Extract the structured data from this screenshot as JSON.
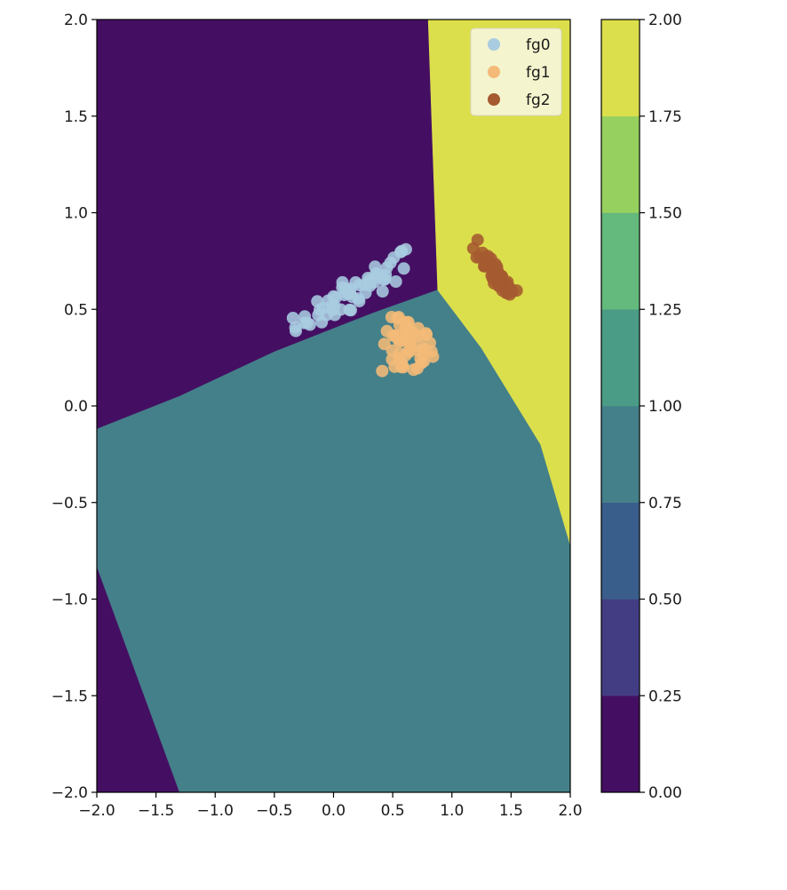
{
  "chart_data": {
    "type": "contourf+scatter",
    "xlim": [
      -2.0,
      2.0
    ],
    "ylim": [
      -2.0,
      2.0
    ],
    "x_ticks": [
      "−2.0",
      "−1.5",
      "−1.0",
      "−0.5",
      "0.0",
      "0.5",
      "1.0",
      "1.5",
      "2.0"
    ],
    "x_tick_values": [
      -2.0,
      -1.5,
      -1.0,
      -0.5,
      0.0,
      0.5,
      1.0,
      1.5,
      2.0
    ],
    "y_ticks": [
      "2.0",
      "1.5",
      "1.0",
      "0.5",
      "0.0",
      "−0.5",
      "−1.0",
      "−1.5",
      "−2.0"
    ],
    "y_tick_values": [
      2.0,
      1.5,
      1.0,
      0.5,
      0.0,
      -0.5,
      -1.0,
      -1.5,
      -2.0
    ],
    "regions": [
      {
        "class_value": 0,
        "color": "#440f62",
        "polygon": [
          [
            -2.0,
            2.0
          ],
          [
            0.8,
            2.0
          ],
          [
            0.88,
            0.6
          ],
          [
            0.33,
            0.48
          ],
          [
            -0.5,
            0.28
          ],
          [
            -1.3,
            0.05
          ],
          [
            -2.0,
            -0.12
          ]
        ]
      },
      {
        "class_value": 0,
        "color": "#440f62",
        "polygon": [
          [
            -2.0,
            -0.83
          ],
          [
            -1.3,
            -2.0
          ],
          [
            -2.0,
            -2.0
          ]
        ]
      },
      {
        "class_value": 1,
        "color": "#44808a",
        "polygon": [
          [
            -2.0,
            -0.12
          ],
          [
            -1.3,
            0.05
          ],
          [
            -0.5,
            0.28
          ],
          [
            0.33,
            0.48
          ],
          [
            0.88,
            0.6
          ],
          [
            1.25,
            0.3
          ],
          [
            1.75,
            -0.2
          ],
          [
            2.0,
            -0.72
          ],
          [
            2.0,
            -2.0
          ],
          [
            -1.3,
            -2.0
          ],
          [
            -2.0,
            -0.83
          ]
        ]
      },
      {
        "class_value": 2,
        "color": "#dcdf4c",
        "polygon": [
          [
            0.8,
            2.0
          ],
          [
            2.0,
            2.0
          ],
          [
            2.0,
            -0.72
          ],
          [
            1.75,
            -0.2
          ],
          [
            1.25,
            0.3
          ],
          [
            0.88,
            0.6
          ]
        ]
      }
    ],
    "series": [
      {
        "name": "fg0",
        "color": "#a9cce0",
        "center": [
          0.2,
          0.6
        ],
        "spread": [
          0.28,
          0.04
        ],
        "tilt": 0.35,
        "n": 60
      },
      {
        "name": "fg1",
        "color": "#f3ba78",
        "center": [
          0.62,
          0.3
        ],
        "spread": [
          0.11,
          0.08
        ],
        "tilt": 0.0,
        "n": 55
      },
      {
        "name": "fg2",
        "color": "#a55a30",
        "center": [
          1.38,
          0.68
        ],
        "spread": [
          0.12,
          0.03
        ],
        "tilt": -0.7,
        "n": 45
      }
    ],
    "colorbar": {
      "ticks": [
        "0.00",
        "0.25",
        "0.50",
        "0.75",
        "1.00",
        "1.25",
        "1.50",
        "1.75",
        "2.00"
      ],
      "tick_values": [
        0.0,
        0.25,
        0.5,
        0.75,
        1.0,
        1.25,
        1.5,
        1.75,
        2.0
      ],
      "bands": [
        {
          "from": 0.0,
          "to": 0.25,
          "color": "#440f62"
        },
        {
          "from": 0.25,
          "to": 0.5,
          "color": "#433d84"
        },
        {
          "from": 0.5,
          "to": 0.75,
          "color": "#3a5e8c"
        },
        {
          "from": 0.75,
          "to": 1.0,
          "color": "#44808a"
        },
        {
          "from": 1.0,
          "to": 1.25,
          "color": "#4a9c86"
        },
        {
          "from": 1.25,
          "to": 1.5,
          "color": "#64b97c"
        },
        {
          "from": 1.5,
          "to": 1.75,
          "color": "#96d15f"
        },
        {
          "from": 1.75,
          "to": 2.0,
          "color": "#dcdf4c"
        }
      ]
    },
    "legend": {
      "placement": "top-right",
      "background": "#f5f5d9",
      "entries": [
        "fg0",
        "fg1",
        "fg2"
      ]
    },
    "grid": false
  }
}
